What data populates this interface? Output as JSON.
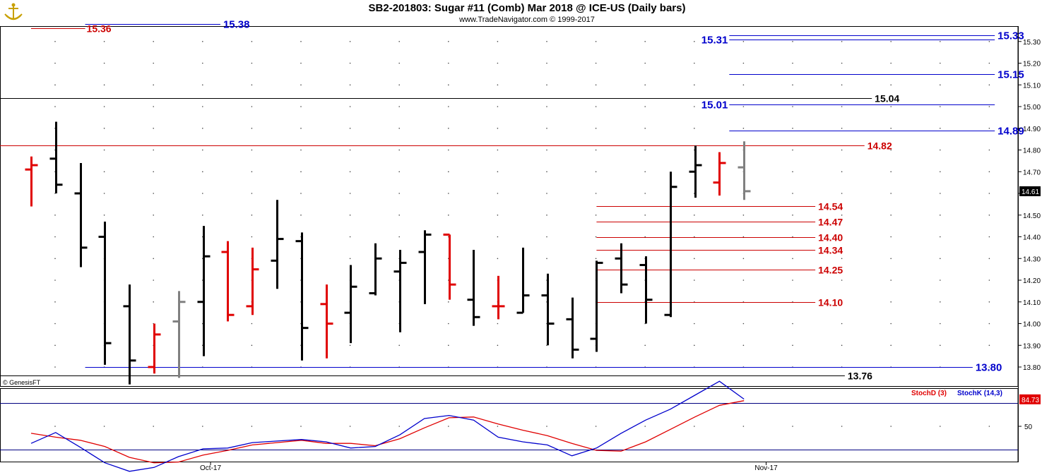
{
  "header": {
    "title": "SB2-201803:  Sugar #11 (Comb) Mar 2018 @ ICE-US  (Daily bars)",
    "subtitle": "www.TradeNavigator.com © 1999-2017"
  },
  "footer": {
    "copyright": "© GenesisFT"
  },
  "colors": {
    "black": "#000000",
    "red": "#e00000",
    "gray": "#808080",
    "blue": "#0000cc",
    "darkred": "#cc0000"
  },
  "chart_data": [
    {
      "type": "ohlc",
      "ylim": [
        13.76,
        15.36
      ],
      "yticks": [
        "13.80",
        "13.90",
        "14.00",
        "14.10",
        "14.20",
        "14.30",
        "14.40",
        "14.50",
        "14.60",
        "14.70",
        "14.80",
        "14.90",
        "15.00",
        "15.10",
        "15.20",
        "15.30"
      ],
      "xticks": [
        {
          "label": "Oct-17",
          "index": 7.3
        },
        {
          "label": "Nov-17",
          "index": 29.9
        }
      ],
      "last_price": "14.61",
      "bars": [
        {
          "o": 14.71,
          "h": 14.77,
          "l": 14.54,
          "c": 14.73,
          "color": "red"
        },
        {
          "o": 14.76,
          "h": 14.93,
          "l": 14.6,
          "c": 14.64,
          "color": "black"
        },
        {
          "o": 14.6,
          "h": 14.74,
          "l": 14.26,
          "c": 14.35,
          "color": "black"
        },
        {
          "o": 14.4,
          "h": 14.47,
          "l": 13.81,
          "c": 13.91,
          "color": "black"
        },
        {
          "o": 14.08,
          "h": 14.18,
          "l": 13.72,
          "c": 13.83,
          "color": "black"
        },
        {
          "o": 13.8,
          "h": 14.0,
          "l": 13.77,
          "c": 13.95,
          "color": "red"
        },
        {
          "o": 14.01,
          "h": 14.15,
          "l": 13.75,
          "c": 14.1,
          "color": "gray"
        },
        {
          "o": 14.1,
          "h": 14.45,
          "l": 13.85,
          "c": 14.31,
          "color": "black"
        },
        {
          "o": 14.33,
          "h": 14.38,
          "l": 14.01,
          "c": 14.04,
          "color": "red"
        },
        {
          "o": 14.08,
          "h": 14.35,
          "l": 14.04,
          "c": 14.25,
          "color": "red"
        },
        {
          "o": 14.29,
          "h": 14.57,
          "l": 14.16,
          "c": 14.39,
          "color": "black"
        },
        {
          "o": 14.38,
          "h": 14.42,
          "l": 13.83,
          "c": 13.98,
          "color": "black"
        },
        {
          "o": 14.09,
          "h": 14.18,
          "l": 13.84,
          "c": 14.0,
          "color": "red"
        },
        {
          "o": 14.05,
          "h": 14.27,
          "l": 13.91,
          "c": 14.17,
          "color": "black"
        },
        {
          "o": 14.14,
          "h": 14.37,
          "l": 14.13,
          "c": 14.3,
          "color": "black"
        },
        {
          "o": 14.24,
          "h": 14.34,
          "l": 13.96,
          "c": 14.28,
          "color": "black"
        },
        {
          "o": 14.33,
          "h": 14.43,
          "l": 14.09,
          "c": 14.41,
          "color": "black"
        },
        {
          "o": 14.41,
          "h": 14.41,
          "l": 14.11,
          "c": 14.18,
          "color": "red"
        },
        {
          "o": 14.11,
          "h": 14.34,
          "l": 13.99,
          "c": 14.03,
          "color": "black"
        },
        {
          "o": 14.08,
          "h": 14.22,
          "l": 14.02,
          "c": 14.08,
          "color": "red"
        },
        {
          "o": 14.05,
          "h": 14.35,
          "l": 14.05,
          "c": 14.13,
          "color": "black"
        },
        {
          "o": 14.13,
          "h": 14.23,
          "l": 13.9,
          "c": 14.0,
          "color": "black"
        },
        {
          "o": 14.02,
          "h": 14.12,
          "l": 13.84,
          "c": 13.88,
          "color": "black"
        },
        {
          "o": 13.93,
          "h": 14.29,
          "l": 13.87,
          "c": 14.28,
          "color": "black"
        },
        {
          "o": 14.3,
          "h": 14.37,
          "l": 14.14,
          "c": 14.18,
          "color": "black"
        },
        {
          "o": 14.27,
          "h": 14.31,
          "l": 14.0,
          "c": 14.11,
          "color": "black"
        },
        {
          "o": 14.04,
          "h": 14.7,
          "l": 14.03,
          "c": 14.63,
          "color": "black"
        },
        {
          "o": 14.7,
          "h": 14.82,
          "l": 14.58,
          "c": 14.73,
          "color": "black"
        },
        {
          "o": 14.65,
          "h": 14.79,
          "l": 14.59,
          "c": 14.74,
          "color": "red"
        },
        {
          "o": 14.72,
          "h": 14.84,
          "l": 14.57,
          "c": 14.61,
          "color": "gray"
        }
      ],
      "levels": [
        {
          "label": "15.36",
          "value": 15.36,
          "color": "darkred",
          "x0": 0,
          "x1": 2.2
        },
        {
          "label": "15.38",
          "value": 15.38,
          "color": "blue",
          "x0": 2.2,
          "x1": 7.7
        },
        {
          "label": "15.33",
          "value": 15.33,
          "color": "blue",
          "x0": 28.4,
          "x1": 39.2
        },
        {
          "label": "15.31",
          "value": 15.31,
          "color": "blue",
          "x0": 28.4,
          "x1": 39.2
        },
        {
          "label": "15.15",
          "value": 15.15,
          "color": "blue",
          "x0": 28.4,
          "x1": 39.2
        },
        {
          "label": "15.04",
          "value": 15.04,
          "color": "black",
          "x0": -1,
          "x1": 34.2
        },
        {
          "label": "15.01",
          "value": 15.01,
          "color": "blue",
          "x0": 28.4,
          "x1": 39.2
        },
        {
          "label": "14.89",
          "value": 14.89,
          "color": "blue",
          "x0": 28.4,
          "x1": 39.2
        },
        {
          "label": "14.82",
          "value": 14.82,
          "color": "darkred",
          "x0": -1,
          "x1": 33.9
        },
        {
          "label": "14.54",
          "value": 14.54,
          "color": "darkred",
          "x0": 23.0,
          "x1": 31.9
        },
        {
          "label": "14.47",
          "value": 14.47,
          "color": "darkred",
          "x0": 23.0,
          "x1": 31.9
        },
        {
          "label": "14.40",
          "value": 14.4,
          "color": "darkred",
          "x0": 23.0,
          "x1": 31.9
        },
        {
          "label": "14.34",
          "value": 14.34,
          "color": "darkred",
          "x0": 23.0,
          "x1": 31.9
        },
        {
          "label": "14.25",
          "value": 14.25,
          "color": "darkred",
          "x0": 23.0,
          "x1": 31.9
        },
        {
          "label": "14.10",
          "value": 14.1,
          "color": "darkred",
          "x0": 23.0,
          "x1": 31.9
        },
        {
          "label": "13.80",
          "value": 13.8,
          "color": "blue",
          "x0": 2.2,
          "x1": 38.3
        },
        {
          "label": "13.76",
          "value": 13.76,
          "color": "black",
          "x0": -1,
          "x1": 33.1
        }
      ]
    },
    {
      "type": "line",
      "ylim": [
        0,
        100
      ],
      "ytick": "50",
      "last_value": "84.73",
      "series": [
        {
          "name": "StochD (3)",
          "color": "red",
          "values": [
            41,
            36,
            32,
            24,
            10,
            3,
            4,
            13,
            19,
            26,
            29,
            32,
            28,
            28,
            25,
            34,
            48,
            61,
            62,
            53,
            45,
            38,
            28,
            19,
            18,
            30,
            46,
            62,
            77,
            83
          ]
        },
        {
          "name": "StochK (14,3)",
          "color": "blue",
          "values": [
            28,
            42,
            23,
            3,
            -8,
            -3,
            11,
            21,
            22,
            29,
            31,
            33,
            30,
            22,
            24,
            39,
            60,
            64,
            58,
            36,
            30,
            26,
            12,
            22,
            41,
            58,
            72,
            90,
            108,
            85
          ]
        }
      ]
    }
  ]
}
